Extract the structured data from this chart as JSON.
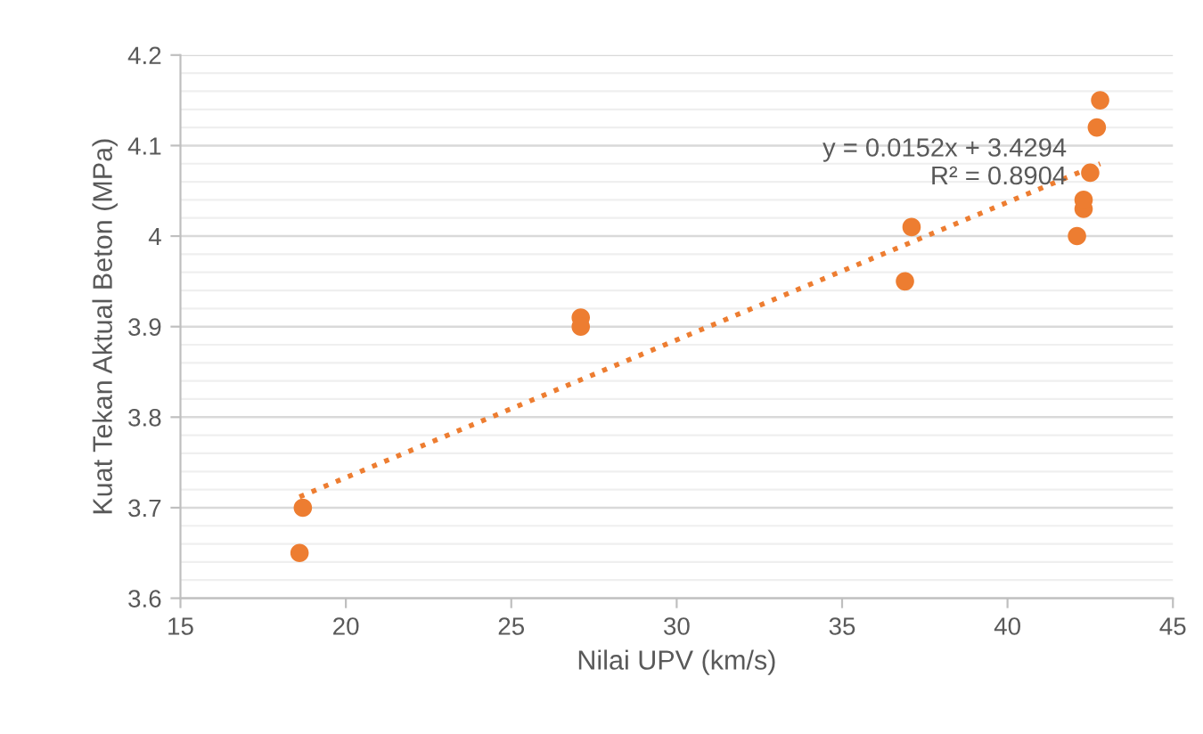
{
  "chart_data": {
    "type": "scatter",
    "xlabel": "Nilai UPV (km/s)",
    "ylabel": "Kuat Tekan Aktual Beton (MPa)",
    "xlim": [
      15,
      45
    ],
    "xticks": [
      15,
      20,
      25,
      30,
      35,
      40,
      45
    ],
    "ylim": [
      3.6,
      4.2
    ],
    "yticks": [
      {
        "value": 3.6,
        "label": "3.6"
      },
      {
        "value": 3.7,
        "label": "3.7"
      },
      {
        "value": 3.8,
        "label": "3.8"
      },
      {
        "value": 3.9,
        "label": "3.9"
      },
      {
        "value": 4.0,
        "label": "4"
      },
      {
        "value": 4.1,
        "label": "4.1"
      },
      {
        "value": 4.2,
        "label": "4.2"
      }
    ],
    "grid": "y",
    "legend": false,
    "series": [
      {
        "color": "#ed7d31",
        "marker": "circle",
        "x": [
          18.6,
          18.7,
          27.1,
          27.1,
          36.9,
          37.1,
          42.1,
          42.3,
          42.3,
          42.5,
          42.7,
          42.8
        ],
        "values": [
          3.65,
          3.7,
          3.91,
          3.9,
          3.95,
          4.01,
          4.0,
          4.03,
          4.04,
          4.07,
          4.12,
          4.15
        ]
      },
      {
        "type": "line",
        "color": "#ed7d31",
        "line_style": "dotted",
        "x": [
          18.6,
          42.8
        ],
        "values": [
          3.712,
          4.08
        ]
      }
    ],
    "annotations": [
      "y = 0.0152x + 3.4294\nR² = 0.8904"
    ]
  }
}
